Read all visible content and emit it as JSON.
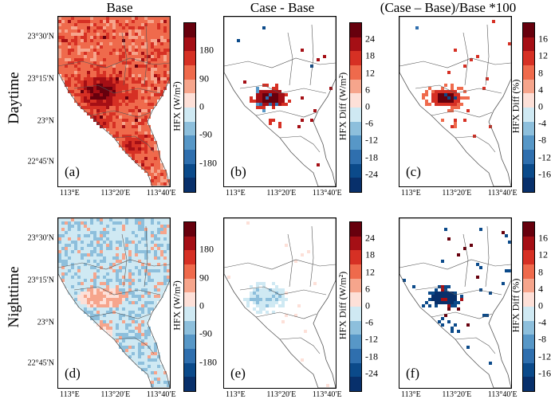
{
  "column_titles": [
    "Base",
    "Case - Base",
    "(Case – Base)/Base *100"
  ],
  "row_titles": [
    "Daytime",
    "Nighttime"
  ],
  "x_ticks": [
    "113°E",
    "113°20′E",
    "113°40′E"
  ],
  "y_ticks": [
    "23°30′N",
    "23°15′N",
    "23°N",
    "22°45′N"
  ],
  "panels": [
    {
      "label": "(a)",
      "row": 0,
      "col": 0,
      "pattern": "base_day"
    },
    {
      "label": "(b)",
      "row": 0,
      "col": 1,
      "pattern": "diff_day"
    },
    {
      "label": "(c)",
      "row": 0,
      "col": 2,
      "pattern": "pct_day"
    },
    {
      "label": "(d)",
      "row": 1,
      "col": 0,
      "pattern": "base_night"
    },
    {
      "label": "(e)",
      "row": 1,
      "col": 1,
      "pattern": "diff_night"
    },
    {
      "label": "(f)",
      "row": 1,
      "col": 2,
      "pattern": "pct_night"
    }
  ],
  "colorbars": [
    {
      "label": "HFX (W/m²)",
      "ticks": [
        "180",
        "90",
        "0",
        "-90",
        "-180"
      ]
    },
    {
      "label": "HFX Diff (W/m²)",
      "ticks": [
        "24",
        "18",
        "12",
        "6",
        "0",
        "-6",
        "-12",
        "-18",
        "-24"
      ]
    },
    {
      "label": "HFX Diff (%)",
      "ticks": [
        "16",
        "12",
        "8",
        "4",
        "0",
        "-4",
        "-8",
        "-12",
        "-16"
      ]
    }
  ],
  "colors": {
    "scale": [
      "#08306b",
      "#0b4a8a",
      "#2f6fae",
      "#5797c7",
      "#8dbfdc",
      "#cfe9f3",
      "#fde0d8",
      "#f6a58c",
      "#ef6a4c",
      "#d63024",
      "#a50f15",
      "#67000d"
    ],
    "outline": "#555555"
  }
}
